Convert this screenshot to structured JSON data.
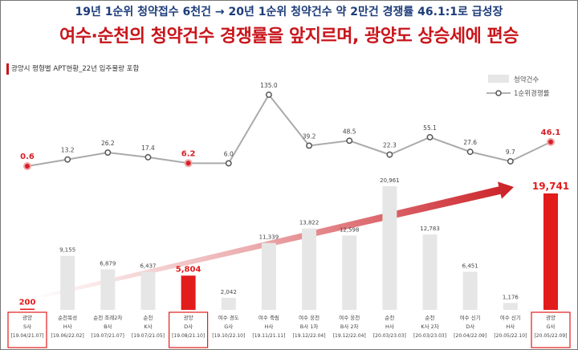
{
  "headline": {
    "line1": "19년 1순위 청약접수 6천건 → 20년 1순위 청약건수 약 2만건 경쟁률 46.1:1로 급성장",
    "line2": "여수·순천의 청약건수 경쟁률을 앞지르며, 광양도 상승세에 편승"
  },
  "chart_data": {
    "type": "bar",
    "subtitle": "광양시 평형별 APT현황_22년 입주물량 포함",
    "legend": [
      "청약건수",
      "1순위경쟁률"
    ],
    "legend_placement": "top-right",
    "categories": [
      {
        "name": "광양",
        "sub": "S사",
        "date": "[19.04/21.07]",
        "highlight": true
      },
      {
        "name": "순천복성",
        "sub": "H사",
        "date": "[19.06/22.02]",
        "highlight": false
      },
      {
        "name": "순천 조례2차",
        "sub": "B사",
        "date": "[19.07/21.07]",
        "highlight": false
      },
      {
        "name": "순천",
        "sub": "K사",
        "date": "[19.07/21.05]",
        "highlight": false
      },
      {
        "name": "광양",
        "sub": "D사",
        "date": "[19.08/21.10]",
        "highlight": true
      },
      {
        "name": "여수 경도",
        "sub": "G사",
        "date": "[19.10/22.10]",
        "highlight": false
      },
      {
        "name": "여수 죽림",
        "sub": "H사",
        "date": "[19.11/21.11]",
        "highlight": false
      },
      {
        "name": "여수 웅천",
        "sub": "B사 1차",
        "date": "[19.12/22.04]",
        "highlight": false
      },
      {
        "name": "여수 웅천",
        "sub": "B사 2차",
        "date": "[19.12/22.04]",
        "highlight": false
      },
      {
        "name": "순천",
        "sub": "H사",
        "date": "[20.03/23.03]",
        "highlight": false
      },
      {
        "name": "순천",
        "sub": "K사 2차",
        "date": "[20.03/23.03]",
        "highlight": false
      },
      {
        "name": "여수 신기",
        "sub": "D사",
        "date": "[20.04/22.09]",
        "highlight": false
      },
      {
        "name": "여수 신기",
        "sub": "H사",
        "date": "[20.05/22.10]",
        "highlight": false
      },
      {
        "name": "광양",
        "sub": "G사",
        "date": "[20.05/22.09]",
        "highlight": true
      }
    ],
    "series": [
      {
        "name": "청약건수",
        "type": "bar",
        "values": [
          200,
          9155,
          6879,
          6437,
          5804,
          2042,
          11339,
          13822,
          12598,
          20961,
          12783,
          6451,
          1176,
          19741
        ],
        "labels": [
          "200",
          "9,155",
          "6,879",
          "6,437",
          "5,804",
          "2,042",
          "11,339",
          "13,822",
          "12,598",
          "20,961",
          "12,783",
          "6,451",
          "1,176",
          "19,741"
        ]
      },
      {
        "name": "1순위경쟁률",
        "type": "line",
        "values": [
          0.6,
          13.2,
          26.2,
          17.4,
          6.2,
          6.0,
          135.0,
          39.2,
          48.5,
          22.3,
          55.1,
          27.6,
          9.7,
          46.1
        ],
        "labels": [
          "0.6",
          "13.2",
          "26.2",
          "17.4",
          "6.2",
          "6.0",
          "135.0",
          "39.2",
          "48.5",
          "22.3",
          "55.1",
          "27.6",
          "9.7",
          "46.1"
        ]
      }
    ],
    "colors": {
      "bar": "#e6e6e6",
      "highlight_bar": "#e21b1b",
      "line": "#aaaaaa",
      "marker": "#555555",
      "highlight_marker": "#d6202a",
      "arrow": "#c8151b",
      "headline1": "#1d3d7a",
      "headline2": "#c8151b"
    },
    "trend_arrow": true
  }
}
